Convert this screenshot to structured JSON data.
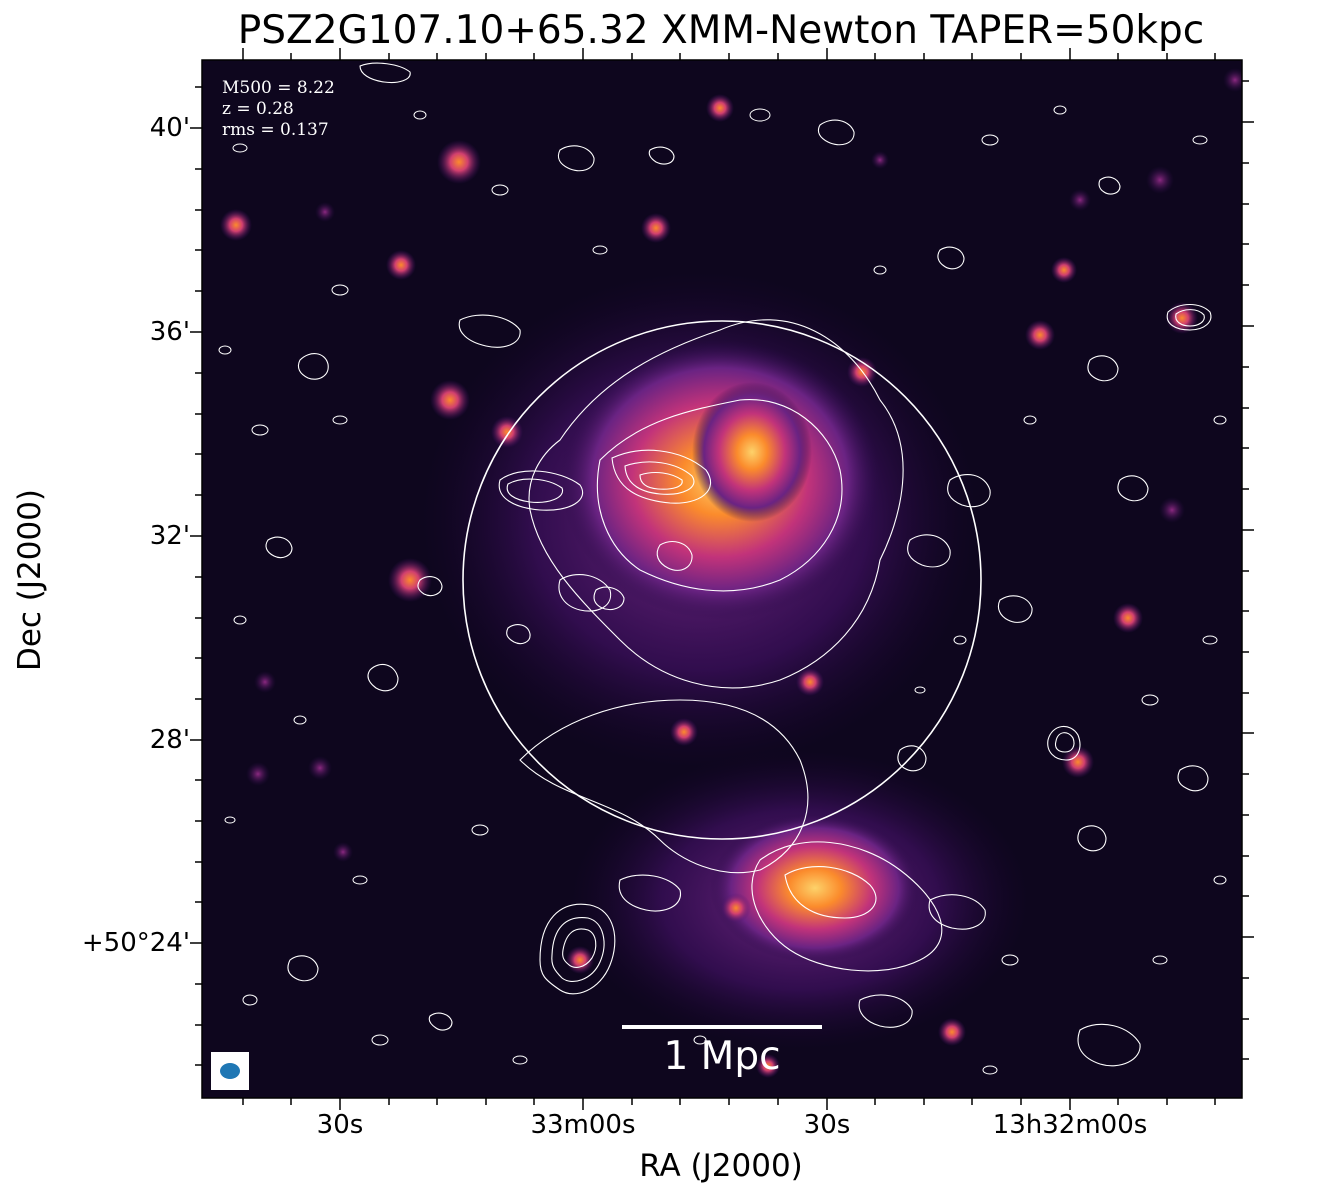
{
  "title": "PSZ2G107.10+65.32 XMM-Newton TAPER=50kpc",
  "axes": {
    "xlabel": "RA (J2000)",
    "ylabel": "Dec (J2000)",
    "xticks": [
      "30s",
      "33m00s",
      "30s",
      "13h32m00s"
    ],
    "yticks": [
      "40'",
      "36'",
      "32'",
      "28'",
      "+50°24'"
    ]
  },
  "info": {
    "m500": "M500 = 8.22",
    "z": "z = 0.28",
    "rms": "rms = 0.137"
  },
  "scalebar": {
    "label": "1 Mpc"
  },
  "colors": {
    "background": "#000000",
    "contour": "#ffffff",
    "beam": "#1f77b4",
    "colormap": [
      "#000004",
      "#3b0f70",
      "#8c2981",
      "#de4968",
      "#fe9f6d",
      "#fcfdbf"
    ]
  }
}
